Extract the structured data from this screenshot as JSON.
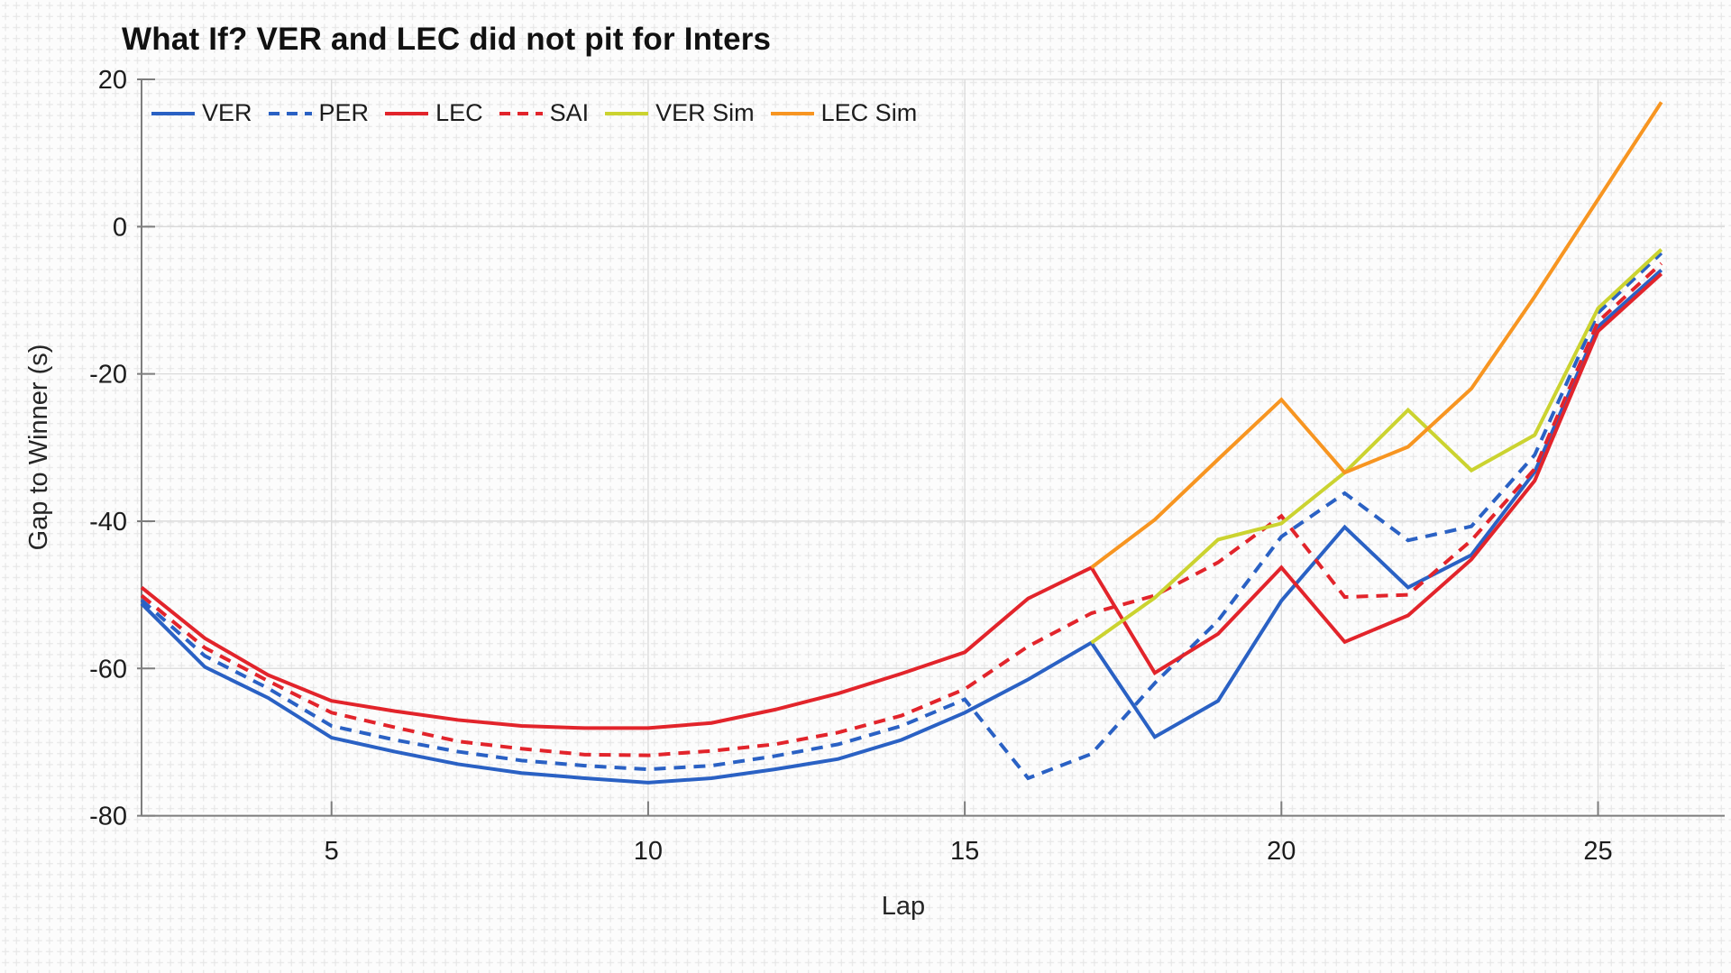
{
  "title": "What If? VER and LEC did not pit for Inters",
  "axes": {
    "xlabel": "Lap",
    "ylabel": "Gap to Winner (s)",
    "xlim": [
      2,
      27
    ],
    "ylim": [
      -80,
      20
    ],
    "xticks": [
      5,
      10,
      15,
      20,
      25
    ],
    "xtick_labels": [
      "5",
      "10",
      "15",
      "20",
      "25"
    ],
    "yticks": [
      20,
      0,
      -20,
      -40,
      -60,
      -80
    ],
    "ytick_labels": [
      "20",
      "0",
      "-20",
      "-40",
      "-60",
      "-80"
    ],
    "grid": "major-on-plus-texture"
  },
  "colors": {
    "paper": "#fcfcfc",
    "texture_cross": "#e8e8e8",
    "major_grid": "#dadada",
    "spine": "#7d7d7d",
    "tick_text": "#1c1c1c",
    "label_text": "#262626",
    "title_text": "#111111",
    "blue": "#2a61c4",
    "red": "#e2242b",
    "yellow_green": "#cbd330",
    "orange": "#f79521"
  },
  "legend": {
    "position": "top-left-inside",
    "items": [
      {
        "label": "VER",
        "color": "#2a61c4",
        "dash": "solid"
      },
      {
        "label": "PER",
        "color": "#2a61c4",
        "dash": "dashed"
      },
      {
        "label": "LEC",
        "color": "#e2242b",
        "dash": "solid"
      },
      {
        "label": "SAI",
        "color": "#e2242b",
        "dash": "dashed"
      },
      {
        "label": "VER Sim",
        "color": "#cbd330",
        "dash": "solid"
      },
      {
        "label": "LEC Sim",
        "color": "#f79521",
        "dash": "solid"
      }
    ]
  },
  "chart_data": {
    "type": "line",
    "title": "What If? VER and LEC did not pit for Inters",
    "xlabel": "Lap",
    "ylabel": "Gap to Winner (s)",
    "xlim": [
      2,
      27
    ],
    "ylim": [
      -80,
      20
    ],
    "x_unit": "lap number",
    "series": [
      {
        "name": "VER",
        "color": "#2a61c4",
        "dash": "solid",
        "x_start": 2,
        "values": [
          -51.2,
          -59.8,
          -64.0,
          -69.4,
          -71.3,
          -73.0,
          -74.2,
          -74.9,
          -75.5,
          -74.9,
          -73.7,
          -72.3,
          -69.7,
          -66.0,
          -61.5,
          -56.5,
          -69.3,
          -64.4,
          -50.8,
          -40.8,
          -49.0,
          -44.6,
          -33.3,
          -13.6,
          -5.9
        ]
      },
      {
        "name": "PER",
        "color": "#2a61c4",
        "dash": "dashed",
        "x_start": 2,
        "values": [
          -50.7,
          -58.3,
          -62.7,
          -67.8,
          -69.7,
          -71.3,
          -72.5,
          -73.2,
          -73.7,
          -73.2,
          -71.9,
          -70.3,
          -67.8,
          -64.2,
          -74.9,
          -71.6,
          -62.0,
          -53.5,
          -42.1,
          -36.2,
          -42.6,
          -40.7,
          -31.0,
          -11.7,
          -3.6
        ]
      },
      {
        "name": "LEC",
        "color": "#e2242b",
        "dash": "solid",
        "x_start": 2,
        "values": [
          -49.0,
          -55.9,
          -60.9,
          -64.4,
          -65.8,
          -67.0,
          -67.8,
          -68.1,
          -68.1,
          -67.4,
          -65.6,
          -63.4,
          -60.7,
          -57.8,
          -50.5,
          -46.3,
          -60.6,
          -55.3,
          -46.3,
          -56.4,
          -52.8,
          -45.2,
          -34.5,
          -14.2,
          -6.4
        ]
      },
      {
        "name": "SAI",
        "color": "#e2242b",
        "dash": "dashed",
        "x_start": 2,
        "values": [
          -50.1,
          -57.2,
          -61.7,
          -66.0,
          -68.0,
          -69.9,
          -70.9,
          -71.7,
          -71.8,
          -71.2,
          -70.3,
          -68.7,
          -66.4,
          -62.8,
          -57.0,
          -52.5,
          -50.1,
          -45.6,
          -39.3,
          -50.3,
          -50.0,
          -42.6,
          -32.9,
          -12.9,
          -5.0
        ]
      },
      {
        "name": "VER Sim",
        "color": "#cbd330",
        "dash": "solid",
        "x_start": 17,
        "values": [
          -56.5,
          -50.4,
          -42.5,
          -40.3,
          -33.4,
          -24.9,
          -33.1,
          -28.3,
          -11.1,
          -3.1
        ]
      },
      {
        "name": "LEC Sim",
        "color": "#f79521",
        "dash": "solid",
        "x_start": 17,
        "values": [
          -46.3,
          -39.8,
          -31.6,
          -23.5,
          -33.4,
          -29.9,
          -22.0,
          -9.5,
          3.7,
          16.9
        ]
      }
    ]
  }
}
